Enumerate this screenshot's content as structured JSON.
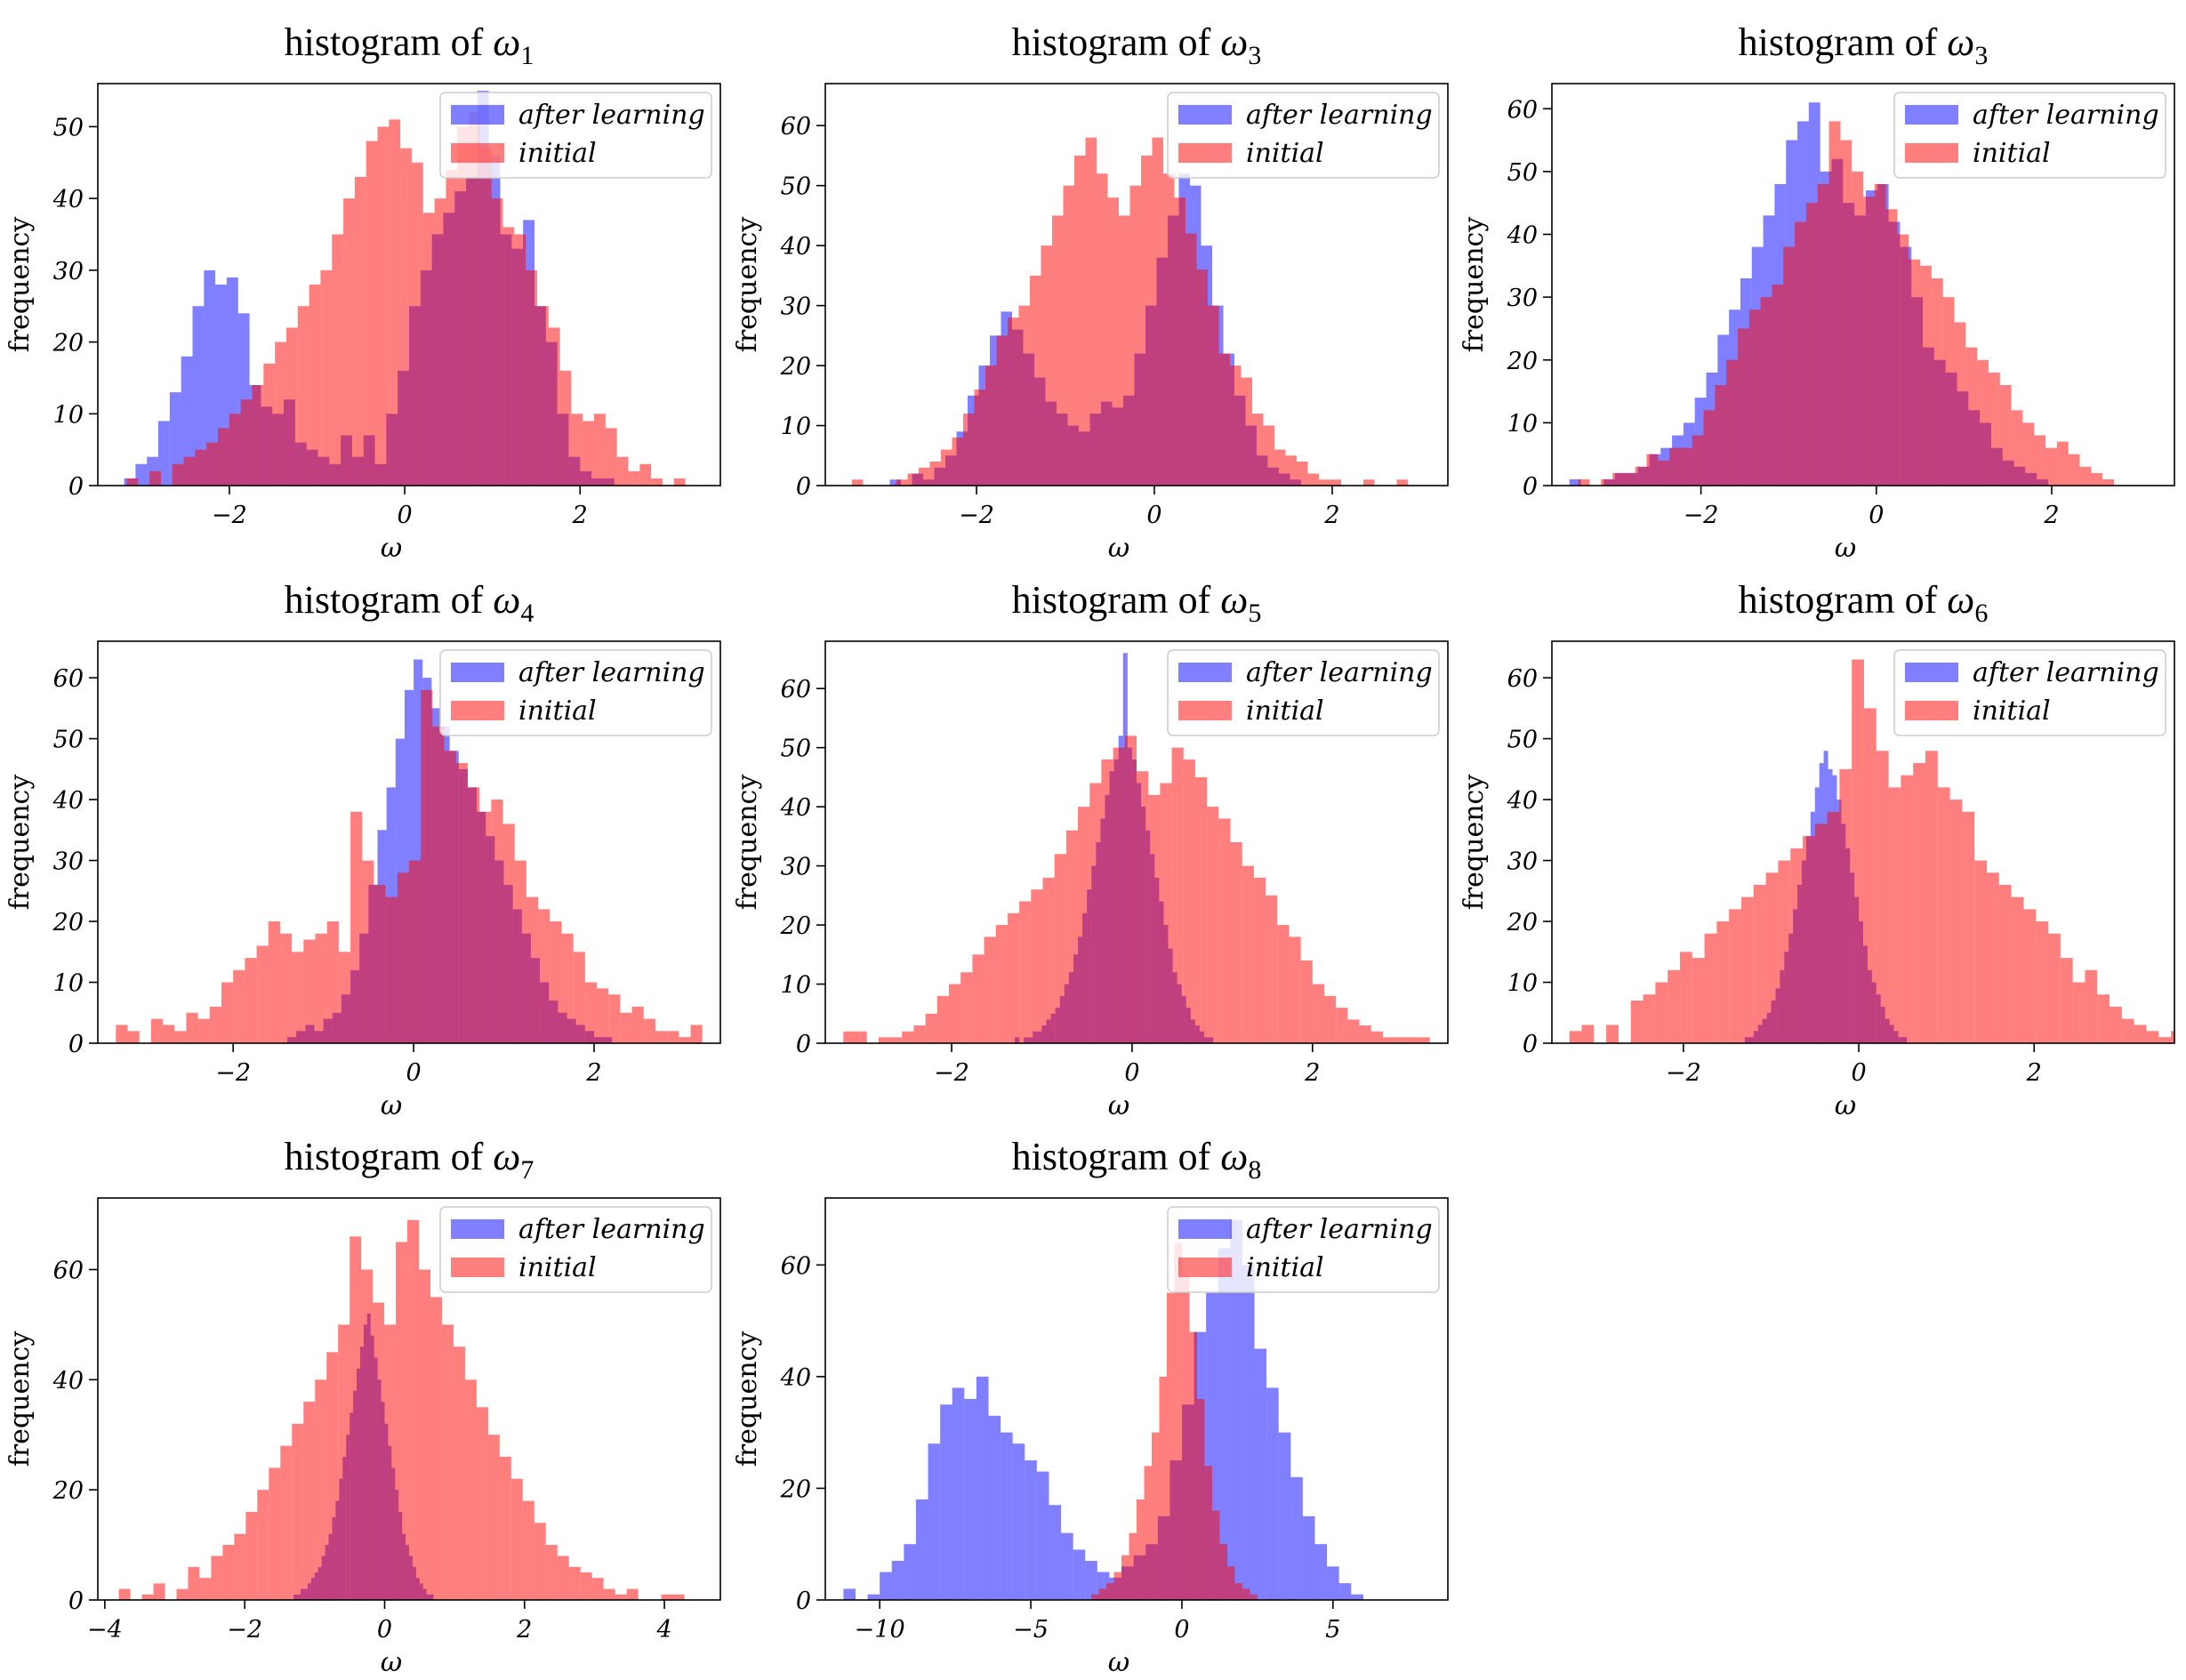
{
  "figure": {
    "x_axis_label": "ω",
    "y_axis_label": "frequency",
    "legend_labels": [
      "after learning",
      "initial"
    ],
    "colors": {
      "after_learning": "#0000ff",
      "initial": "#ff0000",
      "overlap": "#7f3fbf",
      "opacity": 0.5
    }
  },
  "chart_data": [
    {
      "type": "bar",
      "title_prefix": "histogram of ",
      "title_symbol": "ω",
      "title_sub": "1",
      "xlabel": "ω",
      "ylabel": "frequency",
      "xlim": [
        -3.5,
        3.6
      ],
      "ylim": [
        0,
        56
      ],
      "xticks": [
        -2,
        0,
        2
      ],
      "xtick_labels": [
        "−2",
        "0",
        "2"
      ],
      "yticks": [
        0,
        10,
        20,
        30,
        40,
        50
      ],
      "legend": "top-right",
      "series": [
        {
          "name": "after learning",
          "color": "#0000ff",
          "x_start": -3.2,
          "bin_width": 0.13,
          "values": [
            1,
            3,
            4,
            9,
            13,
            18,
            25,
            30,
            28,
            29,
            24,
            14,
            11,
            10,
            12,
            6,
            5,
            4,
            3,
            7,
            4,
            7,
            3,
            10,
            16,
            25,
            30,
            35,
            38,
            41,
            43,
            55,
            46,
            35,
            33,
            37,
            25,
            20,
            10,
            4,
            2,
            1,
            1,
            0,
            0,
            0,
            0,
            0,
            0,
            0
          ]
        },
        {
          "name": "initial",
          "color": "#ff0000",
          "x_start": -3.3,
          "bin_width": 0.13,
          "values": [
            0,
            1,
            0,
            2,
            0,
            3,
            4,
            5,
            6,
            8,
            10,
            12,
            14,
            17,
            20,
            22,
            25,
            28,
            30,
            35,
            40,
            43,
            48,
            50,
            51,
            47,
            45,
            38,
            40,
            44,
            50,
            52,
            47,
            40,
            36,
            35,
            30,
            25,
            22,
            16,
            10,
            9,
            10,
            8,
            4,
            2,
            3,
            1,
            0,
            1
          ]
        }
      ]
    },
    {
      "type": "bar",
      "title_prefix": "histogram of ",
      "title_symbol": "ω",
      "title_sub": "3",
      "xlabel": "ω",
      "ylabel": "frequency",
      "xlim": [
        -3.7,
        3.3
      ],
      "ylim": [
        0,
        67
      ],
      "xticks": [
        -2,
        0,
        2
      ],
      "xtick_labels": [
        "−2",
        "0",
        "2"
      ],
      "yticks": [
        0,
        10,
        20,
        30,
        40,
        50,
        60
      ],
      "legend": "top-right",
      "series": [
        {
          "name": "after learning",
          "color": "#0000ff",
          "x_start": -3.1,
          "bin_width": 0.125,
          "values": [
            0,
            1,
            0,
            2,
            1,
            3,
            5,
            9,
            15,
            20,
            25,
            29,
            26,
            22,
            18,
            14,
            12,
            10,
            9,
            12,
            14,
            13,
            15,
            22,
            30,
            38,
            45,
            52,
            50,
            40,
            30,
            22,
            15,
            10,
            5,
            3,
            2,
            1,
            0,
            0,
            0,
            0,
            0,
            0,
            0,
            0,
            0,
            0,
            0,
            0
          ]
        },
        {
          "name": "initial",
          "color": "#ff0000",
          "x_start": -3.4,
          "bin_width": 0.125,
          "values": [
            1,
            0,
            0,
            0,
            1,
            2,
            3,
            4,
            6,
            8,
            12,
            16,
            20,
            25,
            28,
            30,
            35,
            40,
            45,
            50,
            55,
            58,
            52,
            48,
            45,
            50,
            55,
            58,
            52,
            48,
            42,
            36,
            30,
            22,
            20,
            18,
            12,
            10,
            6,
            5,
            4,
            2,
            1,
            1,
            0,
            0,
            1,
            0,
            0,
            1
          ]
        }
      ]
    },
    {
      "type": "bar",
      "title_prefix": "histogram of ",
      "title_symbol": "ω",
      "title_sub": "3",
      "xlabel": "ω",
      "ylabel": "frequency",
      "xlim": [
        -3.7,
        3.4
      ],
      "ylim": [
        0,
        64
      ],
      "xticks": [
        -2,
        0,
        2
      ],
      "xtick_labels": [
        "−2",
        "0",
        "2"
      ],
      "yticks": [
        0,
        10,
        20,
        30,
        40,
        50,
        60
      ],
      "legend": "top-right",
      "series": [
        {
          "name": "after learning",
          "color": "#0000ff",
          "x_start": -3.5,
          "bin_width": 0.13,
          "values": [
            1,
            0,
            0,
            1,
            2,
            2,
            3,
            5,
            6,
            8,
            10,
            14,
            18,
            24,
            28,
            33,
            38,
            43,
            48,
            55,
            58,
            61,
            50,
            52,
            45,
            43,
            47,
            48,
            42,
            38,
            30,
            22,
            20,
            18,
            15,
            12,
            10,
            6,
            4,
            3,
            2,
            1,
            0,
            0,
            0,
            0,
            0,
            0,
            0,
            0
          ]
        },
        {
          "name": "initial",
          "color": "#ff0000",
          "x_start": -3.4,
          "bin_width": 0.13,
          "values": [
            1,
            0,
            1,
            2,
            2,
            3,
            5,
            4,
            6,
            6,
            8,
            12,
            16,
            20,
            25,
            28,
            30,
            32,
            38,
            42,
            45,
            48,
            58,
            55,
            50,
            46,
            48,
            44,
            40,
            36,
            35,
            33,
            30,
            26,
            22,
            20,
            18,
            16,
            12,
            10,
            8,
            6,
            7,
            5,
            3,
            2,
            1,
            0,
            0,
            0
          ]
        }
      ]
    },
    {
      "type": "bar",
      "title_prefix": "histogram of ",
      "title_symbol": "ω",
      "title_sub": "4",
      "xlabel": "ω",
      "ylabel": "frequency",
      "xlim": [
        -3.5,
        3.4
      ],
      "ylim": [
        0,
        66
      ],
      "xticks": [
        -2,
        0,
        2
      ],
      "xtick_labels": [
        "−2",
        "0",
        "2"
      ],
      "yticks": [
        0,
        10,
        20,
        30,
        40,
        50,
        60
      ],
      "legend": "top-right",
      "series": [
        {
          "name": "after learning",
          "color": "#0000ff",
          "x_start": -1.4,
          "bin_width": 0.1,
          "values": [
            1,
            2,
            3,
            2,
            4,
            5,
            8,
            12,
            18,
            26,
            35,
            42,
            50,
            58,
            63,
            60,
            55,
            52,
            48,
            45,
            42,
            38,
            34,
            30,
            26,
            22,
            18,
            14,
            10,
            7,
            5,
            4,
            3,
            2,
            1,
            1,
            0,
            0,
            0,
            0
          ]
        },
        {
          "name": "initial",
          "color": "#ff0000",
          "x_start": -3.3,
          "bin_width": 0.13,
          "values": [
            3,
            2,
            0,
            4,
            3,
            2,
            5,
            4,
            6,
            10,
            12,
            14,
            16,
            20,
            18,
            15,
            17,
            18,
            20,
            15,
            38,
            30,
            26,
            24,
            28,
            30,
            58,
            52,
            48,
            46,
            42,
            38,
            40,
            36,
            30,
            24,
            22,
            20,
            18,
            15,
            10,
            9,
            8,
            5,
            6,
            4,
            2,
            2,
            1,
            3
          ]
        }
      ]
    },
    {
      "type": "bar",
      "title_prefix": "histogram of ",
      "title_symbol": "ω",
      "title_sub": "5",
      "xlabel": "ω",
      "ylabel": "frequency",
      "xlim": [
        -3.4,
        3.5
      ],
      "ylim": [
        0,
        68
      ],
      "xticks": [
        -2,
        0,
        2
      ],
      "xtick_labels": [
        "−2",
        "0",
        "2"
      ],
      "yticks": [
        0,
        10,
        20,
        30,
        40,
        50,
        60
      ],
      "legend": "top-right",
      "series": [
        {
          "name": "after learning",
          "color": "#0000ff",
          "x_start": -1.3,
          "bin_width": 0.05,
          "values": [
            1,
            0,
            1,
            1,
            2,
            2,
            3,
            4,
            5,
            6,
            8,
            10,
            12,
            15,
            18,
            22,
            26,
            30,
            34,
            38,
            42,
            46,
            48,
            52,
            66,
            50,
            48,
            44,
            40,
            36,
            32,
            28,
            24,
            20,
            16,
            12,
            10,
            8,
            6,
            4,
            3,
            2,
            1,
            1,
            0,
            0,
            0,
            0,
            0,
            0
          ]
        },
        {
          "name": "initial",
          "color": "#ff0000",
          "x_start": -3.2,
          "bin_width": 0.13,
          "values": [
            2,
            2,
            0,
            1,
            1,
            2,
            3,
            5,
            8,
            10,
            12,
            15,
            18,
            20,
            22,
            24,
            26,
            28,
            32,
            36,
            40,
            44,
            48,
            50,
            52,
            46,
            42,
            44,
            50,
            48,
            45,
            40,
            38,
            34,
            30,
            28,
            25,
            20,
            18,
            14,
            10,
            8,
            6,
            4,
            3,
            2,
            1,
            1,
            1,
            1
          ]
        }
      ]
    },
    {
      "type": "bar",
      "title_prefix": "histogram of ",
      "title_symbol": "ω",
      "title_sub": "6",
      "xlabel": "ω",
      "ylabel": "frequency",
      "xlim": [
        -3.5,
        3.6
      ],
      "ylim": [
        0,
        66
      ],
      "xticks": [
        -2,
        0,
        2
      ],
      "xtick_labels": [
        "−2",
        "0",
        "2"
      ],
      "yticks": [
        0,
        10,
        20,
        30,
        40,
        50,
        60
      ],
      "legend": "top-right",
      "series": [
        {
          "name": "after learning",
          "color": "#0000ff",
          "x_start": -1.3,
          "bin_width": 0.05,
          "values": [
            1,
            1,
            2,
            3,
            4,
            5,
            7,
            9,
            12,
            15,
            18,
            22,
            26,
            30,
            34,
            38,
            42,
            46,
            48,
            45,
            44,
            40,
            36,
            32,
            28,
            24,
            20,
            16,
            12,
            10,
            8,
            6,
            4,
            3,
            2,
            1,
            1,
            0,
            0,
            0,
            0,
            0,
            0,
            0,
            0,
            0,
            0,
            0,
            0,
            0
          ]
        },
        {
          "name": "initial",
          "color": "#ff0000",
          "x_start": -3.3,
          "bin_width": 0.14,
          "values": [
            2,
            3,
            0,
            3,
            0,
            7,
            8,
            10,
            12,
            15,
            14,
            18,
            20,
            22,
            24,
            26,
            28,
            30,
            32,
            34,
            36,
            38,
            45,
            63,
            55,
            48,
            42,
            44,
            46,
            48,
            42,
            40,
            38,
            30,
            28,
            26,
            24,
            22,
            20,
            18,
            14,
            10,
            12,
            8,
            6,
            4,
            3,
            2,
            1,
            2
          ]
        }
      ]
    },
    {
      "type": "bar",
      "title_prefix": "histogram of ",
      "title_symbol": "ω",
      "title_sub": "7",
      "xlabel": "ω",
      "ylabel": "frequency",
      "xlim": [
        -4.1,
        4.8
      ],
      "ylim": [
        0,
        73
      ],
      "xticks": [
        -4,
        -2,
        0,
        2,
        4
      ],
      "xtick_labels": [
        "−4",
        "−2",
        "0",
        "2",
        "4"
      ],
      "yticks": [
        0,
        20,
        40,
        60
      ],
      "legend": "top-right",
      "series": [
        {
          "name": "after learning",
          "color": "#0000ff",
          "x_start": -1.3,
          "bin_width": 0.05,
          "values": [
            1,
            1,
            2,
            2,
            3,
            4,
            5,
            6,
            8,
            10,
            12,
            15,
            18,
            22,
            26,
            30,
            34,
            38,
            42,
            46,
            50,
            52,
            48,
            44,
            40,
            36,
            32,
            28,
            24,
            20,
            16,
            12,
            10,
            8,
            6,
            4,
            3,
            2,
            1,
            1,
            0,
            0,
            0,
            0,
            0,
            0,
            0,
            0,
            0,
            0
          ]
        },
        {
          "name": "initial",
          "color": "#ff0000",
          "x_start": -3.8,
          "bin_width": 0.165,
          "values": [
            2,
            0,
            1,
            3,
            0,
            2,
            6,
            4,
            8,
            10,
            12,
            16,
            20,
            24,
            28,
            32,
            36,
            40,
            45,
            50,
            66,
            60,
            54,
            50,
            65,
            69,
            60,
            55,
            50,
            46,
            40,
            35,
            30,
            26,
            22,
            18,
            14,
            10,
            8,
            6,
            5,
            4,
            2,
            1,
            2,
            0,
            0,
            1,
            1,
            0
          ]
        }
      ]
    },
    {
      "type": "bar",
      "title_prefix": "histogram of ",
      "title_symbol": "ω",
      "title_sub": "8",
      "xlabel": "ω",
      "ylabel": "frequency",
      "xlim": [
        -11.8,
        8.8
      ],
      "ylim": [
        0,
        72
      ],
      "xticks": [
        -10,
        -5,
        0,
        5
      ],
      "xtick_labels": [
        "−10",
        "−5",
        "0",
        "5"
      ],
      "yticks": [
        0,
        20,
        40,
        60
      ],
      "legend": "top-right",
      "series": [
        {
          "name": "after learning",
          "color": "#0000ff",
          "x_start": -11.2,
          "bin_width": 0.4,
          "values": [
            2,
            0,
            1,
            5,
            7,
            10,
            18,
            28,
            35,
            38,
            36,
            40,
            33,
            30,
            28,
            25,
            23,
            17,
            12,
            9,
            7,
            5,
            4,
            6,
            8,
            10,
            15,
            25,
            35,
            48,
            55,
            63,
            68,
            60,
            45,
            38,
            30,
            22,
            15,
            10,
            6,
            3,
            1,
            0,
            0,
            0,
            0,
            0,
            0,
            0
          ]
        },
        {
          "name": "initial",
          "color": "#ff0000",
          "x_start": -3.0,
          "bin_width": 0.25,
          "values": [
            1,
            2,
            3,
            5,
            8,
            12,
            18,
            24,
            30,
            40,
            55,
            64,
            58,
            48,
            36,
            24,
            16,
            10,
            6,
            3,
            2,
            1,
            0,
            0,
            0,
            0,
            0,
            0,
            0,
            0,
            0,
            0,
            0,
            0,
            0,
            0,
            0,
            0,
            0,
            0,
            0,
            0,
            0,
            0,
            0,
            0,
            0,
            0,
            0,
            0
          ]
        }
      ]
    }
  ]
}
